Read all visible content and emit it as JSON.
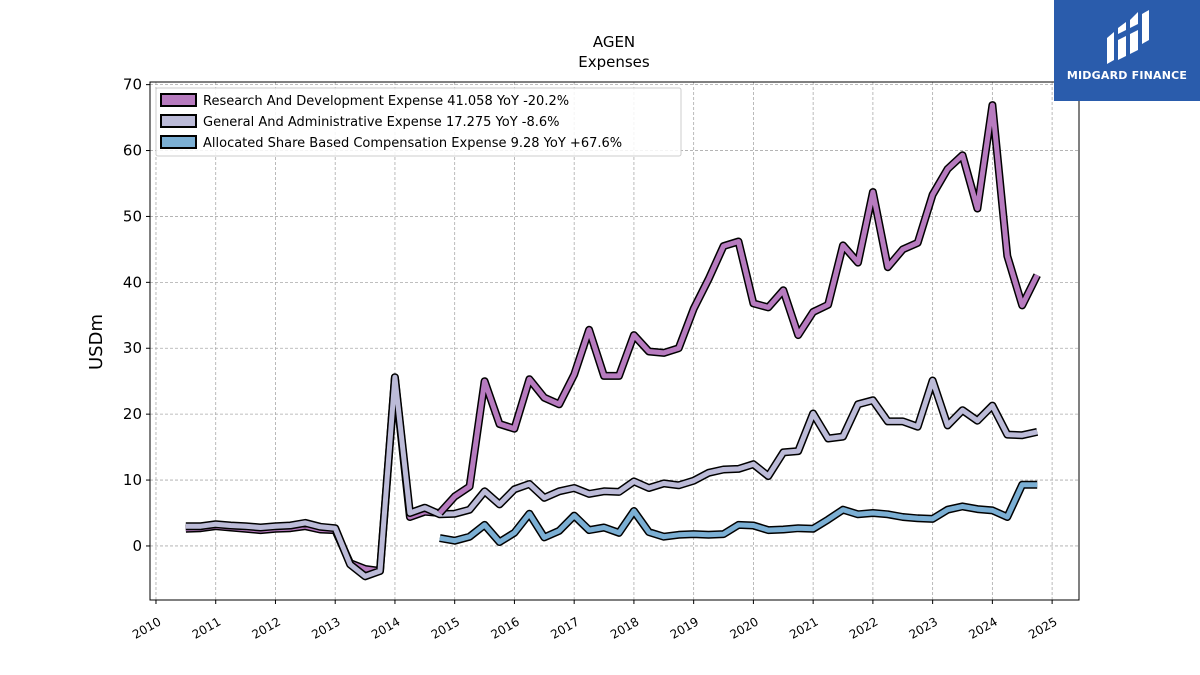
{
  "brand": {
    "name": "MIDGARD FINANCE",
    "background": "#2a5cac"
  },
  "chart_data": {
    "type": "line",
    "title": "AGEN",
    "subtitle": "Expenses",
    "ylabel": "USDm",
    "xlabel": "",
    "xlim": [
      2009.9,
      2025.45
    ],
    "ylim": [
      -8.2,
      70.4
    ],
    "yticks": [
      0,
      10,
      20,
      30,
      40,
      50,
      60,
      70
    ],
    "xticks": [
      2010,
      2011,
      2012,
      2013,
      2014,
      2015,
      2016,
      2017,
      2018,
      2019,
      2020,
      2021,
      2022,
      2023,
      2024,
      2025
    ],
    "grid": true,
    "legend_position": "top-left",
    "series": [
      {
        "name": "Research And Development Expense  41.058 YoY -20.2%",
        "color": "#b77bbf",
        "points": [
          [
            2014.75,
            5.0
          ],
          [
            2015.0,
            7.5
          ],
          [
            2015.25,
            9.0
          ],
          [
            2015.5,
            25.0
          ],
          [
            2015.75,
            18.5
          ],
          [
            2016.0,
            17.8
          ],
          [
            2016.25,
            25.3
          ],
          [
            2016.5,
            22.5
          ],
          [
            2016.75,
            21.5
          ],
          [
            2017.0,
            26.0
          ],
          [
            2017.25,
            32.8
          ],
          [
            2017.5,
            25.8
          ],
          [
            2017.75,
            25.8
          ],
          [
            2018.0,
            32.0
          ],
          [
            2018.25,
            29.5
          ],
          [
            2018.5,
            29.3
          ],
          [
            2018.75,
            30.0
          ],
          [
            2019.0,
            36.0
          ],
          [
            2019.25,
            40.5
          ],
          [
            2019.5,
            45.5
          ],
          [
            2019.75,
            46.2
          ],
          [
            2020.0,
            36.8
          ],
          [
            2020.25,
            36.2
          ],
          [
            2020.5,
            38.8
          ],
          [
            2020.75,
            32.0
          ],
          [
            2021.0,
            35.5
          ],
          [
            2021.25,
            36.6
          ],
          [
            2021.5,
            45.6
          ],
          [
            2021.75,
            43.0
          ],
          [
            2022.0,
            53.7
          ],
          [
            2022.25,
            42.3
          ],
          [
            2022.5,
            45.0
          ],
          [
            2022.75,
            46.0
          ],
          [
            2023.0,
            53.3
          ],
          [
            2023.25,
            57.2
          ],
          [
            2023.5,
            59.3
          ],
          [
            2023.75,
            51.2
          ],
          [
            2024.0,
            66.9
          ],
          [
            2024.25,
            44.0
          ],
          [
            2024.5,
            36.5
          ],
          [
            2024.75,
            41.1
          ]
        ],
        "early_points": [
          [
            2010.5,
            2.6
          ],
          [
            2010.75,
            2.7
          ],
          [
            2011.0,
            3.0
          ],
          [
            2011.25,
            2.8
          ],
          [
            2011.5,
            2.6
          ],
          [
            2011.75,
            2.4
          ],
          [
            2012.0,
            2.6
          ],
          [
            2012.25,
            2.7
          ],
          [
            2012.5,
            3.0
          ],
          [
            2012.75,
            2.5
          ],
          [
            2013.0,
            2.4
          ],
          [
            2013.25,
            -2.6
          ],
          [
            2013.5,
            -3.5
          ],
          [
            2013.75,
            -3.8
          ],
          [
            2014.0,
            25.5
          ],
          [
            2014.25,
            4.4
          ],
          [
            2014.5,
            5.2
          ],
          [
            2014.75,
            5.0
          ]
        ]
      },
      {
        "name": "General And Administrative Expense  17.275 YoY -8.6%",
        "color": "#bcbbd8",
        "points": [
          [
            2010.5,
            3.0
          ],
          [
            2010.75,
            3.0
          ],
          [
            2011.0,
            3.3
          ],
          [
            2011.25,
            3.1
          ],
          [
            2011.5,
            3.0
          ],
          [
            2011.75,
            2.8
          ],
          [
            2012.0,
            3.0
          ],
          [
            2012.25,
            3.1
          ],
          [
            2012.5,
            3.5
          ],
          [
            2012.75,
            2.9
          ],
          [
            2013.0,
            2.7
          ],
          [
            2013.25,
            -2.8
          ],
          [
            2013.5,
            -4.6
          ],
          [
            2013.75,
            -3.8
          ],
          [
            2014.0,
            25.6
          ],
          [
            2014.25,
            5.0
          ],
          [
            2014.5,
            5.8
          ],
          [
            2014.75,
            4.8
          ],
          [
            2015.0,
            4.9
          ],
          [
            2015.25,
            5.5
          ],
          [
            2015.5,
            8.3
          ],
          [
            2015.75,
            6.3
          ],
          [
            2016.0,
            8.6
          ],
          [
            2016.25,
            9.4
          ],
          [
            2016.5,
            7.3
          ],
          [
            2016.75,
            8.3
          ],
          [
            2017.0,
            8.8
          ],
          [
            2017.25,
            7.9
          ],
          [
            2017.5,
            8.3
          ],
          [
            2017.75,
            8.2
          ],
          [
            2018.0,
            9.8
          ],
          [
            2018.25,
            8.8
          ],
          [
            2018.5,
            9.5
          ],
          [
            2018.75,
            9.2
          ],
          [
            2019.0,
            9.9
          ],
          [
            2019.25,
            11.1
          ],
          [
            2019.5,
            11.6
          ],
          [
            2019.75,
            11.7
          ],
          [
            2020.0,
            12.4
          ],
          [
            2020.25,
            10.6
          ],
          [
            2020.5,
            14.2
          ],
          [
            2020.75,
            14.4
          ],
          [
            2021.0,
            20.1
          ],
          [
            2021.25,
            16.3
          ],
          [
            2021.5,
            16.6
          ],
          [
            2021.75,
            21.5
          ],
          [
            2022.0,
            22.1
          ],
          [
            2022.25,
            18.9
          ],
          [
            2022.5,
            18.9
          ],
          [
            2022.75,
            18.1
          ],
          [
            2023.0,
            25.1
          ],
          [
            2023.25,
            18.3
          ],
          [
            2023.5,
            20.6
          ],
          [
            2023.75,
            19.0
          ],
          [
            2024.0,
            21.3
          ],
          [
            2024.25,
            16.9
          ],
          [
            2024.5,
            16.8
          ],
          [
            2024.75,
            17.3
          ]
        ]
      },
      {
        "name": "Allocated Share Based Compensation Expense  9.28 YoY +67.6%",
        "color": "#7bafd4",
        "points": [
          [
            2014.75,
            1.2
          ],
          [
            2015.0,
            0.8
          ],
          [
            2015.25,
            1.4
          ],
          [
            2015.5,
            3.2
          ],
          [
            2015.75,
            0.6
          ],
          [
            2016.0,
            2.0
          ],
          [
            2016.25,
            4.9
          ],
          [
            2016.5,
            1.3
          ],
          [
            2016.75,
            2.3
          ],
          [
            2017.0,
            4.6
          ],
          [
            2017.25,
            2.4
          ],
          [
            2017.5,
            2.8
          ],
          [
            2017.75,
            2.0
          ],
          [
            2018.0,
            5.3
          ],
          [
            2018.25,
            2.1
          ],
          [
            2018.5,
            1.4
          ],
          [
            2018.75,
            1.7
          ],
          [
            2019.0,
            1.8
          ],
          [
            2019.25,
            1.7
          ],
          [
            2019.5,
            1.8
          ],
          [
            2019.75,
            3.2
          ],
          [
            2020.0,
            3.1
          ],
          [
            2020.25,
            2.4
          ],
          [
            2020.5,
            2.5
          ],
          [
            2020.75,
            2.7
          ],
          [
            2021.0,
            2.6
          ],
          [
            2021.25,
            4.0
          ],
          [
            2021.5,
            5.5
          ],
          [
            2021.75,
            4.8
          ],
          [
            2022.0,
            5.0
          ],
          [
            2022.25,
            4.8
          ],
          [
            2022.5,
            4.4
          ],
          [
            2022.75,
            4.2
          ],
          [
            2023.0,
            4.1
          ],
          [
            2023.25,
            5.5
          ],
          [
            2023.5,
            6.0
          ],
          [
            2023.75,
            5.6
          ],
          [
            2024.0,
            5.4
          ],
          [
            2024.25,
            4.4
          ],
          [
            2024.5,
            9.3
          ],
          [
            2024.75,
            9.3
          ]
        ]
      }
    ]
  }
}
